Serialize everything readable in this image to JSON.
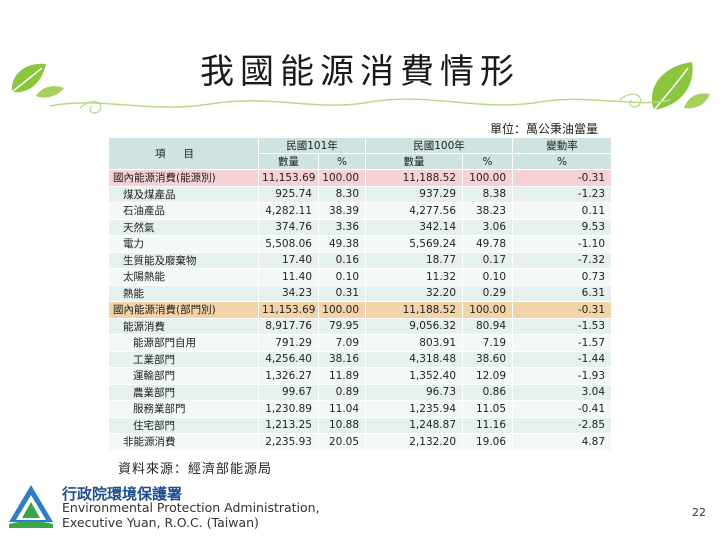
{
  "title": "我國能源消費情形",
  "unit_label": "單位：萬公秉油當量",
  "table": {
    "header_item": "項目",
    "col_groups": [
      "民國101年",
      "民國100年",
      "變動率"
    ],
    "sub_headers": [
      "數量",
      "%",
      "數量",
      "%",
      "%"
    ],
    "rows": [
      {
        "label": "國內能源消費(能源別)",
        "q101": "11,153.69",
        "p101": "100.00",
        "q100": "11,188.52",
        "p100": "100.00",
        "chg": "-0.31",
        "style": "pink"
      },
      {
        "label": "煤及煤產品",
        "q101": "925.74",
        "p101": "8.30",
        "q100": "937.29",
        "p100": "8.38",
        "chg": "-1.23",
        "style": "lt"
      },
      {
        "label": "石油產品",
        "q101": "4,282.11",
        "p101": "38.39",
        "q100": "4,277.56",
        "p100": "38.23",
        "chg": "0.11",
        "style": "wt"
      },
      {
        "label": "天然氣",
        "q101": "374.76",
        "p101": "3.36",
        "q100": "342.14",
        "p100": "3.06",
        "chg": "9.53",
        "style": "lt"
      },
      {
        "label": "電力",
        "q101": "5,508.06",
        "p101": "49.38",
        "q100": "5,569.24",
        "p100": "49.78",
        "chg": "-1.10",
        "style": "wt"
      },
      {
        "label": "生質能及廢棄物",
        "q101": "17.40",
        "p101": "0.16",
        "q100": "18.77",
        "p100": "0.17",
        "chg": "-7.32",
        "style": "lt"
      },
      {
        "label": "太陽熱能",
        "q101": "11.40",
        "p101": "0.10",
        "q100": "11.32",
        "p100": "0.10",
        "chg": "0.73",
        "style": "wt"
      },
      {
        "label": "熱能",
        "q101": "34.23",
        "p101": "0.31",
        "q100": "32.20",
        "p100": "0.29",
        "chg": "6.31",
        "style": "lt"
      },
      {
        "label": "國內能源消費(部門別)",
        "q101": "11,153.69",
        "p101": "100.00",
        "q100": "11,188.52",
        "p100": "100.00",
        "chg": "-0.31",
        "style": "beige"
      },
      {
        "label": "能源消費",
        "q101": "8,917.76",
        "p101": "79.95",
        "q100": "9,056.32",
        "p100": "80.94",
        "chg": "-1.53",
        "style": "lt"
      },
      {
        "label": "能源部門自用",
        "q101": "791.29",
        "p101": "7.09",
        "q100": "803.91",
        "p100": "7.19",
        "chg": "-1.57",
        "style": "wt"
      },
      {
        "label": "工業部門",
        "q101": "4,256.40",
        "p101": "38.16",
        "q100": "4,318.48",
        "p100": "38.60",
        "chg": "-1.44",
        "style": "lt"
      },
      {
        "label": "運輸部門",
        "q101": "1,326.27",
        "p101": "11.89",
        "q100": "1,352.40",
        "p100": "12.09",
        "chg": "-1.93",
        "style": "wt"
      },
      {
        "label": "農業部門",
        "q101": "99.67",
        "p101": "0.89",
        "q100": "96.73",
        "p100": "0.86",
        "chg": "3.04",
        "style": "lt"
      },
      {
        "label": "服務業部門",
        "q101": "1,230.89",
        "p101": "11.04",
        "q100": "1,235.94",
        "p100": "11.05",
        "chg": "-0.41",
        "style": "wt"
      },
      {
        "label": "住宅部門",
        "q101": "1,213.25",
        "p101": "10.88",
        "q100": "1,248.87",
        "p100": "11.16",
        "chg": "-2.85",
        "style": "lt"
      },
      {
        "label": "非能源消費",
        "q101": "2,235.93",
        "p101": "20.05",
        "q100": "2,132.20",
        "p100": "19.06",
        "chg": "4.87",
        "style": "wt"
      }
    ]
  },
  "source": "資料來源：經濟部能源局",
  "footer": {
    "org_zh": "行政院環境保護署",
    "org_en_line1": "Environmental Protection Administration,",
    "org_en_line2": "Executive Yuan, R.O.C. (Taiwan)"
  },
  "page_number": "22",
  "colors": {
    "leaf": "#8cc63f",
    "header": "#cfe3e3",
    "highlight_pink": "#f6d2d6",
    "highlight_beige": "#f3d4a8",
    "logo_blue": "#1f4f8f"
  }
}
